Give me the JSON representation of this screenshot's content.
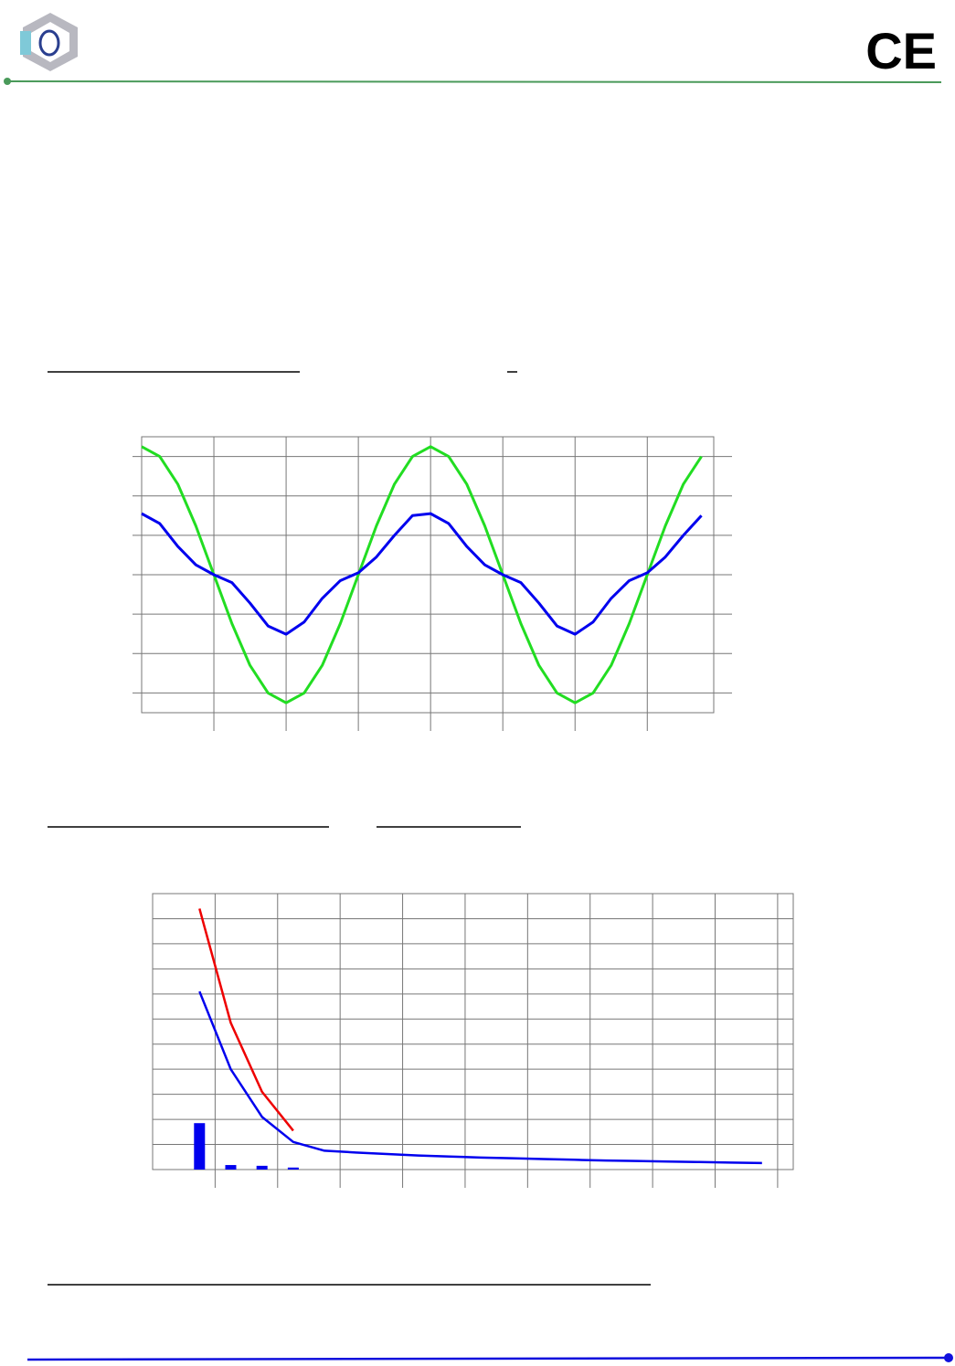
{
  "header": {
    "mark": "CE"
  },
  "chart_data": [
    {
      "type": "line",
      "x": [
        0,
        0.25,
        0.5,
        0.75,
        1,
        1.25,
        1.5,
        1.75,
        2,
        2.25,
        2.5,
        2.75,
        3,
        3.25,
        3.5,
        3.75,
        4,
        4.25,
        4.5,
        4.75,
        5,
        5.25,
        5.5,
        5.75,
        6,
        6.25,
        6.5,
        6.75,
        7,
        7.25,
        7.5,
        7.75
      ],
      "series": [
        {
          "color": "#22dd22",
          "values": [
            3.25,
            3.0,
            2.3,
            1.24,
            0,
            -1.24,
            -2.3,
            -3.0,
            -3.25,
            -3.0,
            -2.3,
            -1.24,
            0,
            1.24,
            2.3,
            3.0,
            3.25,
            3.0,
            2.3,
            1.24,
            0,
            -1.24,
            -2.3,
            -3.0,
            -3.25,
            -3.0,
            -2.3,
            -1.24,
            0,
            1.24,
            2.3,
            3.0
          ]
        },
        {
          "color": "#0000ee",
          "values": [
            1.55,
            1.3,
            0.72,
            0.25,
            0,
            -0.2,
            -0.72,
            -1.3,
            -1.51,
            -1.2,
            -0.6,
            -0.15,
            0.05,
            0.45,
            1.0,
            1.5,
            1.55,
            1.3,
            0.72,
            0.25,
            0,
            -0.2,
            -0.72,
            -1.3,
            -1.51,
            -1.2,
            -0.6,
            -0.15,
            0.05,
            0.45,
            1.0,
            1.5
          ]
        }
      ],
      "xlim": [
        0,
        7.92
      ],
      "xticks": [
        1,
        2,
        3,
        4,
        5,
        6,
        7
      ],
      "ylim": [
        -3.5,
        3.5
      ],
      "yticks": [
        -3,
        -2,
        -1,
        0,
        1,
        2,
        3
      ],
      "grid": true
    },
    {
      "type": "line",
      "series": [
        {
          "type": "bar",
          "color": "#0000ee",
          "x": [
            3,
            5,
            7,
            9
          ],
          "values": [
            1.85,
            0.18,
            0.15,
            0.08
          ]
        },
        {
          "type": "line",
          "color": "#ee0000",
          "x": [
            3,
            5,
            7,
            9
          ],
          "values": [
            10.4,
            5.85,
            3.1,
            1.55
          ]
        },
        {
          "type": "line",
          "color": "#0000ee",
          "x": [
            3,
            5,
            7,
            9,
            11,
            13,
            15,
            17,
            19,
            21,
            23,
            25,
            27,
            29,
            31,
            33,
            35,
            37,
            39
          ],
          "values": [
            7.1,
            4.0,
            2.1,
            1.1,
            0.75,
            0.68,
            0.62,
            0.56,
            0.52,
            0.48,
            0.45,
            0.42,
            0.39,
            0.36,
            0.34,
            0.32,
            0.3,
            0.28,
            0.26
          ]
        }
      ],
      "xlim": [
        0,
        41
      ],
      "xticks": [
        4,
        8,
        12,
        16,
        20,
        24,
        28,
        32,
        36,
        40
      ],
      "ylim": [
        0,
        11
      ],
      "yticks": [
        1,
        2,
        3,
        4,
        5,
        6,
        7,
        8,
        9,
        10
      ],
      "grid": true
    }
  ]
}
